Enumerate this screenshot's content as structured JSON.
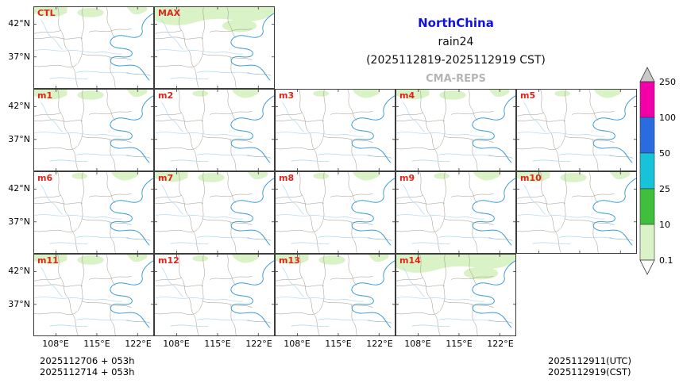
{
  "title": {
    "region": "NorthChina",
    "variable": "rain24",
    "period": "(2025112819-2025112919 CST)",
    "model": "CMA-REPS"
  },
  "panels": [
    {
      "label": "CTL",
      "row": 1,
      "col": 1,
      "rain": "medium"
    },
    {
      "label": "MAX",
      "row": 1,
      "col": 2,
      "rain": "large"
    },
    {
      "label": "m1",
      "row": 2,
      "col": 1,
      "rain": "medium"
    },
    {
      "label": "m2",
      "row": 2,
      "col": 2,
      "rain": "small"
    },
    {
      "label": "m3",
      "row": 2,
      "col": 3,
      "rain": "small"
    },
    {
      "label": "m4",
      "row": 2,
      "col": 4,
      "rain": "medium"
    },
    {
      "label": "m5",
      "row": 2,
      "col": 5,
      "rain": "small"
    },
    {
      "label": "m6",
      "row": 3,
      "col": 1,
      "rain": "small"
    },
    {
      "label": "m7",
      "row": 3,
      "col": 2,
      "rain": "medium"
    },
    {
      "label": "m8",
      "row": 3,
      "col": 3,
      "rain": "small"
    },
    {
      "label": "m9",
      "row": 3,
      "col": 4,
      "rain": "small"
    },
    {
      "label": "m10",
      "row": 3,
      "col": 5,
      "rain": "medium"
    },
    {
      "label": "m11",
      "row": 4,
      "col": 1,
      "rain": "medium"
    },
    {
      "label": "m12",
      "row": 4,
      "col": 2,
      "rain": "small"
    },
    {
      "label": "m13",
      "row": 4,
      "col": 3,
      "rain": "medium"
    },
    {
      "label": "m14",
      "row": 4,
      "col": 4,
      "rain": "large"
    }
  ],
  "axis": {
    "lat_labels": [
      "42°N",
      "37°N"
    ],
    "lon_labels": [
      "108°E",
      "115°E",
      "122°E"
    ]
  },
  "colorbar": {
    "values": [
      "250",
      "100",
      "50",
      "25",
      "10",
      "0.1"
    ],
    "segment_colors": [
      "#f400a8",
      "#2a6ce0",
      "#17c3d8",
      "#3fbf3c",
      "#d9f3c6"
    ],
    "arrow_top_color": "#c9c9c9",
    "arrow_bottom_color": "#ffffff"
  },
  "footer": {
    "init_lines": [
      "2025112706 + 053h",
      "2025112714 + 053h"
    ],
    "valid_lines": [
      "2025112911(UTC)",
      "2025112919(CST)"
    ]
  },
  "colors": {
    "title_blue": "#1212dd",
    "model_gray": "#b5b5b5",
    "label_red": "#e32219",
    "coast": "#3a9bd5",
    "river": "#aed6f0",
    "boundary": "#9a9186",
    "rain_fill": "#d9f3c6"
  }
}
